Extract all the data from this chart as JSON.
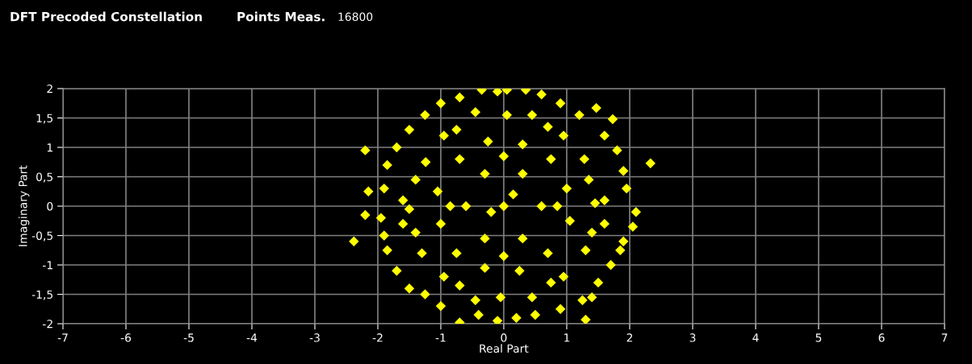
{
  "chart_data": {
    "type": "scatter",
    "title": "DFT Precoded Constellation",
    "annotations": [
      "Points Meas.",
      "16800"
    ],
    "xlabel": "Real Part",
    "ylabel": "Imaginary Part",
    "xlim": [
      -7,
      7
    ],
    "ylim": [
      -2,
      2
    ],
    "xticks": [
      -7,
      -6,
      -5,
      -4,
      -3,
      -2,
      -1,
      0,
      1,
      2,
      3,
      4,
      5,
      6,
      7
    ],
    "yticks": [
      {
        "value": -2,
        "label": "-2"
      },
      {
        "value": -1.5,
        "label": "-1,5"
      },
      {
        "value": -1,
        "label": "-1"
      },
      {
        "value": -0.5,
        "label": "-0,5"
      },
      {
        "value": 0,
        "label": "0"
      },
      {
        "value": 0.5,
        "label": "0,5"
      },
      {
        "value": 1,
        "label": "1"
      },
      {
        "value": 1.5,
        "label": "1,5"
      },
      {
        "value": 2,
        "label": "2"
      }
    ],
    "grid": true,
    "marker": "diamond",
    "series": [
      {
        "color": "#ffff00",
        "x": [
          -1.9,
          -1.95,
          -1.85,
          -1.7,
          -1.5,
          -1.25,
          -1.0,
          -0.7,
          -0.35,
          -0.1,
          0.05,
          0.35,
          0.6,
          0.9,
          1.2,
          1.47,
          1.73,
          1.6,
          1.8,
          1.9,
          1.95,
          2.1,
          2.05,
          1.9,
          1.85,
          1.7,
          1.5,
          1.4,
          1.25,
          0.9,
          1.3,
          0.5,
          0.2,
          -0.1,
          -0.4,
          -0.7,
          -1.0,
          -1.25,
          -1.5,
          -1.7,
          -1.85,
          -1.9,
          -2.2,
          2.33,
          -2.38,
          -2.2,
          -2.15,
          1.45,
          1.28,
          0.7,
          0.05,
          -0.75,
          -1.24,
          -1.5,
          -1.3,
          -0.7,
          -0.05,
          0.75,
          1.3,
          1.0,
          0.75,
          0.3,
          -0.25,
          -0.7,
          -1.05,
          -1.0,
          -0.75,
          -0.3,
          0.25,
          0.7,
          1.05,
          1.35,
          0.95,
          0.45,
          -0.45,
          -0.95,
          -1.4,
          -1.4,
          -0.95,
          -0.45,
          0.45,
          0.95,
          1.4,
          0.6,
          0.3,
          -0.3,
          -0.6,
          -0.3,
          0.3,
          0.0,
          0.15,
          -0.2,
          0.85,
          -0.85,
          0.0,
          0.0,
          1.6,
          -1.6,
          1.6,
          -1.6
        ],
        "values": [
          0.3,
          -0.2,
          0.7,
          1.0,
          1.3,
          1.55,
          1.75,
          1.85,
          1.98,
          1.95,
          1.98,
          1.98,
          1.9,
          1.75,
          1.55,
          1.67,
          1.48,
          1.2,
          0.95,
          0.6,
          0.3,
          -0.1,
          -0.35,
          -0.6,
          -0.75,
          -1.0,
          -1.3,
          -1.55,
          -1.6,
          -1.75,
          -1.93,
          -1.85,
          -1.9,
          -1.95,
          -1.85,
          -1.98,
          -1.7,
          -1.5,
          -1.4,
          -1.1,
          -0.75,
          -0.5,
          0.95,
          0.73,
          -0.6,
          -0.15,
          0.25,
          0.05,
          0.8,
          1.35,
          1.55,
          1.3,
          0.75,
          -0.05,
          -0.8,
          -1.35,
          -1.55,
          -1.3,
          -0.75,
          0.3,
          0.8,
          1.05,
          1.1,
          0.8,
          0.25,
          -0.3,
          -0.8,
          -1.05,
          -1.1,
          -0.8,
          -0.25,
          0.45,
          1.2,
          1.55,
          1.6,
          1.2,
          0.45,
          -0.45,
          -1.2,
          -1.6,
          -1.55,
          -1.2,
          -0.45,
          0.0,
          0.55,
          0.55,
          0.0,
          -0.55,
          -0.55,
          0.0,
          0.2,
          -0.1,
          0.0,
          0.0,
          0.85,
          -0.85,
          0.1,
          0.1,
          -0.3,
          -0.3
        ]
      }
    ]
  }
}
